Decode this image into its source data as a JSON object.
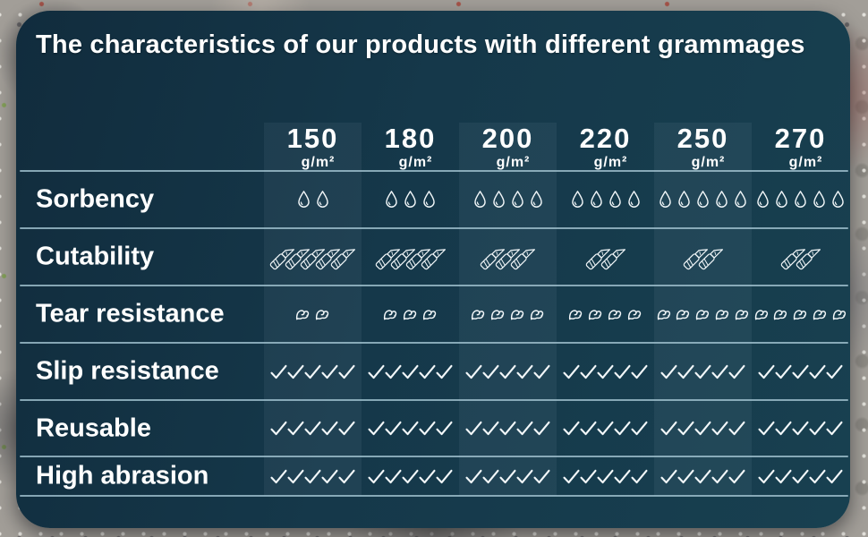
{
  "title": "The characteristics of our products with different grammages",
  "chart_data": {
    "type": "table",
    "title": "The characteristics of our products with different grammages",
    "columns": [
      {
        "grammage": "150",
        "unit": "g/m²"
      },
      {
        "grammage": "180",
        "unit": "g/m²"
      },
      {
        "grammage": "200",
        "unit": "g/m²"
      },
      {
        "grammage": "220",
        "unit": "g/m²"
      },
      {
        "grammage": "250",
        "unit": "g/m²"
      },
      {
        "grammage": "270",
        "unit": "g/m²"
      }
    ],
    "rating_scale": {
      "min": 0,
      "max": 5,
      "encoding": "number of icons shown"
    },
    "rows": [
      {
        "label": "Sorbency",
        "icon": "water-drop-icon",
        "values": [
          2,
          3,
          4,
          4,
          5,
          5
        ]
      },
      {
        "label": "Cutability",
        "icon": "cutter-knife-icon",
        "values": [
          5,
          4,
          3,
          2,
          2,
          2
        ]
      },
      {
        "label": "Tear resistance",
        "icon": "flexed-arm-icon",
        "values": [
          2,
          3,
          4,
          4,
          5,
          5
        ]
      },
      {
        "label": "Slip resistance",
        "icon": "checkmark-icon",
        "values": [
          5,
          5,
          5,
          5,
          5,
          5
        ]
      },
      {
        "label": "Reusable",
        "icon": "checkmark-icon",
        "values": [
          5,
          5,
          5,
          5,
          5,
          5
        ]
      },
      {
        "label": "High abrasion",
        "icon": "checkmark-icon",
        "values": [
          5,
          5,
          5,
          5,
          5,
          5
        ]
      }
    ],
    "legend_position": "none",
    "grid": "horizontal dividers between rows, lighter vertical bands behind 150 / 200 / 250 columns"
  },
  "colors": {
    "panel_background": "#15384a",
    "column_band": "rgba(214,238,248,0.06)",
    "divider": "#a0c1ce",
    "text_and_icons": "#ffffff",
    "backdrop_base": "#a29e98"
  }
}
